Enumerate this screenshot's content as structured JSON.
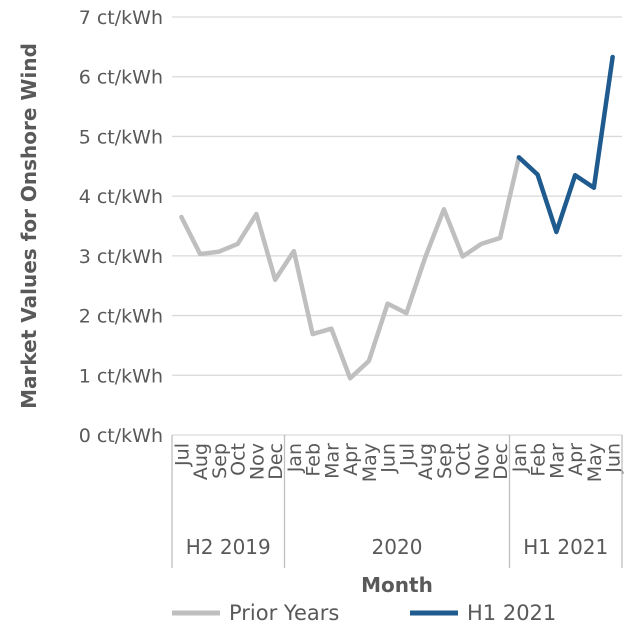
{
  "chart_data": {
    "type": "line",
    "ylabel": "Market Values for Onshore Wind",
    "xlabel": "Month",
    "y_unit": "ct/kWh",
    "ylim": [
      0,
      7
    ],
    "y_ticks": [
      "0 ct/kWh",
      "1 ct/kWh",
      "2 ct/kWh",
      "3 ct/kWh",
      "4 ct/kWh",
      "5 ct/kWh",
      "6 ct/kWh",
      "7 ct/kWh"
    ],
    "grid": "horizontal",
    "legend_position": "bottom",
    "categories": [
      "Jul",
      "Aug",
      "Sep",
      "Oct",
      "Nov",
      "Dec",
      "Jan",
      "Feb",
      "Mar",
      "Apr",
      "May",
      "Jun",
      "Jul",
      "Aug",
      "Sep",
      "Oct",
      "Nov",
      "Dec",
      "Jan",
      "Feb",
      "Mar",
      "Apr",
      "May",
      "Jun"
    ],
    "groups": [
      {
        "label": "H2 2019",
        "count": 6
      },
      {
        "label": "2020",
        "count": 12
      },
      {
        "label": "H1 2021",
        "count": 6
      }
    ],
    "series": [
      {
        "name": "Prior Years",
        "color": "#bfbfbf",
        "values": [
          3.65,
          3.03,
          3.07,
          3.2,
          3.7,
          2.6,
          3.08,
          1.69,
          1.78,
          0.95,
          1.24,
          2.2,
          2.04,
          2.97,
          3.78,
          2.99,
          3.2,
          3.3,
          4.65,
          null,
          null,
          null,
          null,
          null
        ]
      },
      {
        "name": "H1 2021",
        "color": "#1f5b8e",
        "values": [
          null,
          null,
          null,
          null,
          null,
          null,
          null,
          null,
          null,
          null,
          null,
          null,
          null,
          null,
          null,
          null,
          null,
          null,
          4.65,
          4.36,
          3.4,
          4.35,
          4.14,
          6.33
        ]
      }
    ]
  }
}
